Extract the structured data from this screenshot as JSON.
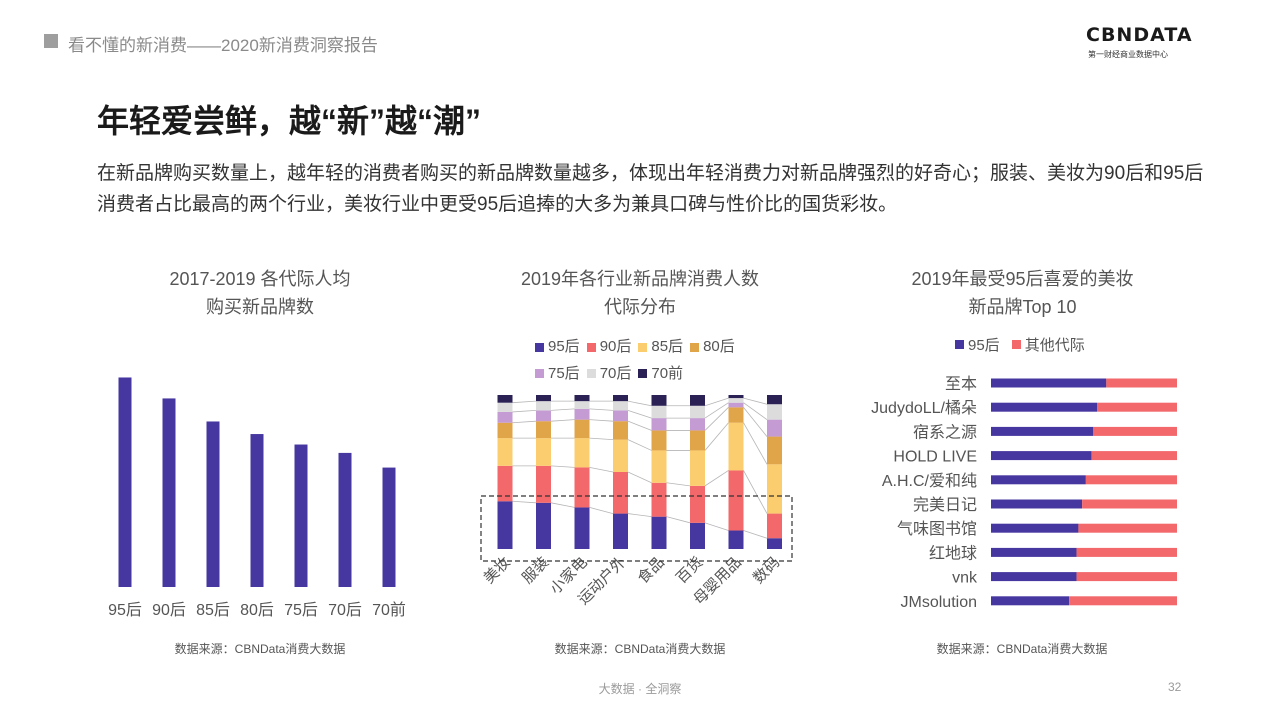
{
  "header": {
    "title": "看不懂的新消费——2020新消费洞察报告",
    "logo_main": "CBNDATA",
    "logo_sub": "第一财经商业数据中心"
  },
  "title": "年轻爱尝鲜，越“新”越“潮”",
  "description": "在新品牌购买数量上，越年轻的消费者购买的新品牌数量越多，体现出年轻消费力对新品牌强烈的好奇心；服装、美妆为90后和95后消费者占比最高的两个行业，美妆行业中更受95后追捧的大多为兼具口碑与性价比的国货彩妆。",
  "colors": {
    "c95": "#4637a0",
    "c90": "#f2686b",
    "c85": "#fccd6f",
    "c80": "#e0a449",
    "c75": "#c49bd3",
    "c70": "#dcdcdc",
    "c70q": "#2b2155",
    "other": "#f2686b"
  },
  "chart_data": [
    {
      "type": "bar",
      "title_line1": "2017-2019 各代际人均",
      "title_line2": "购买新品牌数",
      "categories": [
        "95后",
        "90后",
        "85后",
        "80后",
        "75后",
        "70后",
        "70前"
      ],
      "values": [
        100,
        90,
        79,
        73,
        68,
        64,
        57
      ],
      "ylim": [
        0,
        105
      ],
      "source": "数据来源：CBNData消费大数据"
    },
    {
      "type": "bar",
      "stacked": true,
      "percent": true,
      "title_line1": "2019年各行业新品牌消费人数",
      "title_line2": "代际分布",
      "categories": [
        "美妆",
        "服装",
        "小家电",
        "运动户外",
        "食品",
        "百货",
        "母婴用品",
        "数码"
      ],
      "series": [
        {
          "name": "95后",
          "values": [
            31,
            30,
            27,
            23,
            21,
            17,
            12,
            7
          ]
        },
        {
          "name": "90后",
          "values": [
            23,
            24,
            26,
            27,
            22,
            24,
            39,
            16
          ]
        },
        {
          "name": "85后",
          "values": [
            18,
            18,
            19,
            21,
            21,
            23,
            31,
            32
          ]
        },
        {
          "name": "80后",
          "values": [
            10,
            11,
            12,
            12,
            13,
            13,
            10,
            18
          ]
        },
        {
          "name": "75后",
          "values": [
            7,
            7,
            7,
            7,
            8,
            8,
            3,
            11
          ]
        },
        {
          "name": "70后",
          "values": [
            6,
            6,
            5,
            6,
            8,
            8,
            3,
            10
          ]
        },
        {
          "name": "70前",
          "values": [
            5,
            4,
            4,
            4,
            7,
            7,
            2,
            6
          ]
        }
      ],
      "source": "数据来源：CBNData消费大数据"
    },
    {
      "type": "bar",
      "orientation": "horizontal",
      "stacked": true,
      "percent": true,
      "title_line1": "2019年最受95后喜爱的美妆",
      "title_line2": "新品牌Top 10",
      "categories": [
        "至本",
        "JudydoLL/橘朵",
        "宿系之源",
        "HOLD LIVE",
        "A.H.C/爱和纯",
        "完美日记",
        "气味图书馆",
        "红地球",
        "vnk",
        "JMsolution"
      ],
      "series": [
        {
          "name": "95后",
          "values": [
            62,
            57,
            55,
            54,
            51,
            49,
            47,
            46,
            46,
            42
          ]
        },
        {
          "name": "其他代际",
          "values": [
            38,
            43,
            45,
            46,
            49,
            51,
            53,
            54,
            54,
            58
          ]
        }
      ],
      "source": "数据来源：CBNData消费大数据"
    }
  ],
  "footer": {
    "center": "大数据 · 全洞察",
    "page": "32"
  }
}
